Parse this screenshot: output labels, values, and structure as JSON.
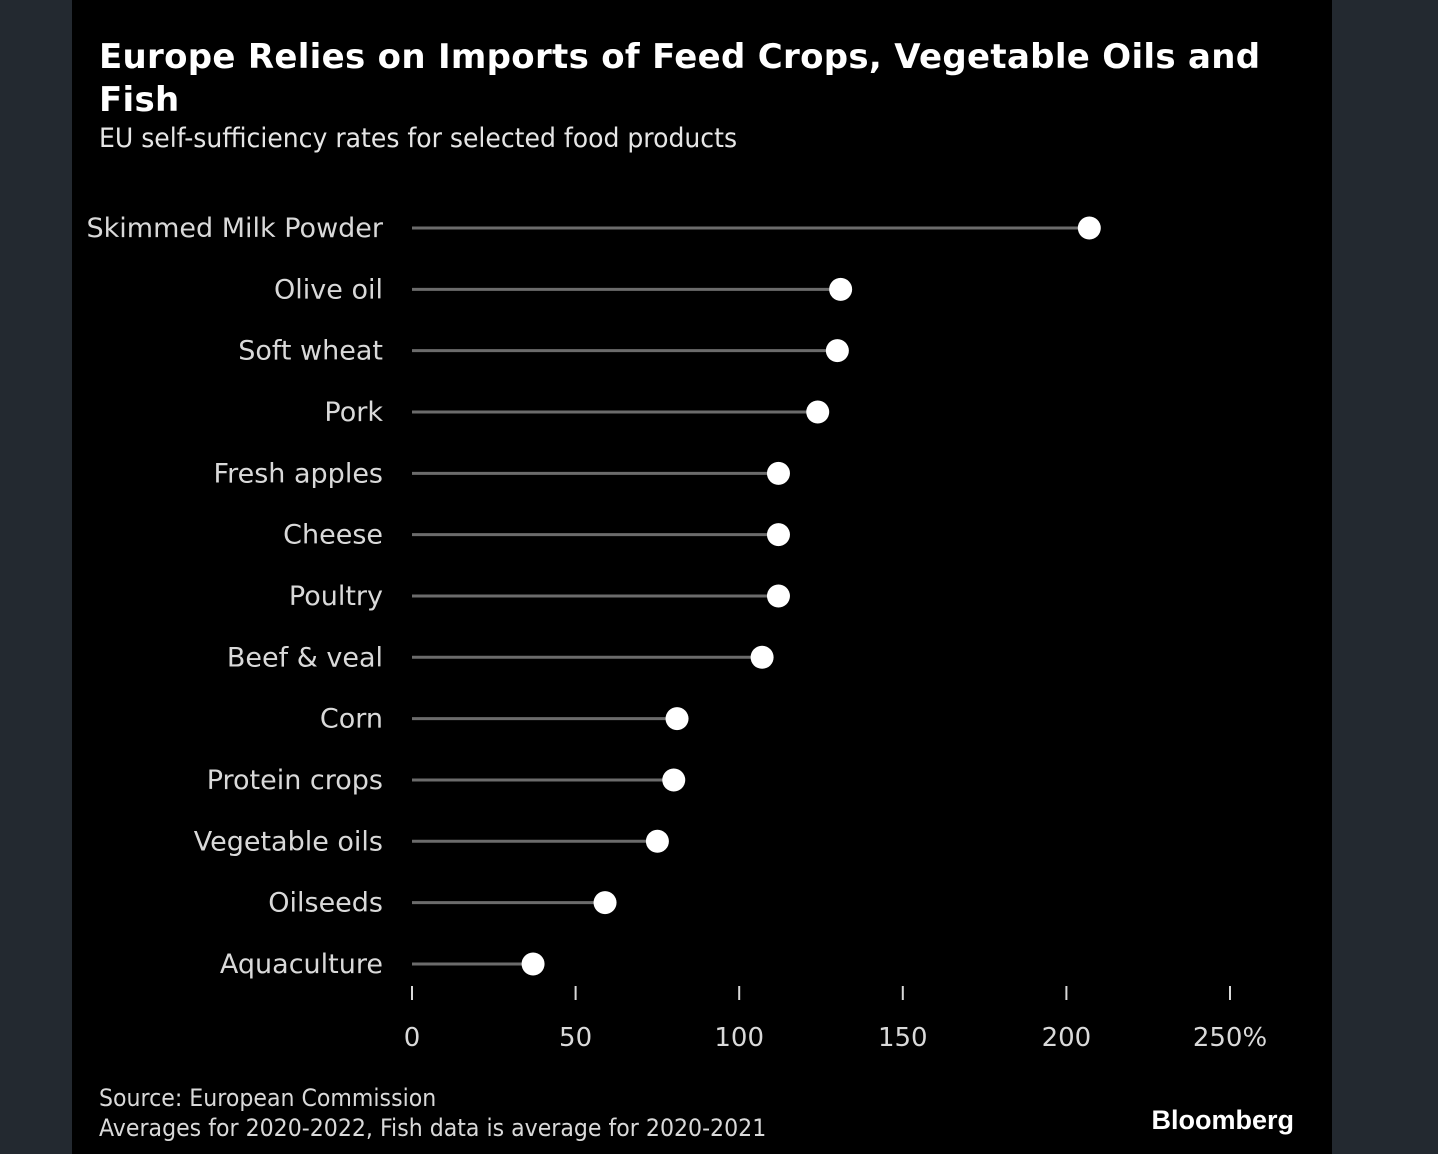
{
  "chart_data": {
    "type": "lollipop",
    "title": "Europe Relies on Imports of Feed Crops, Vegetable Oils and Fish",
    "subtitle": "EU self-sufficiency rates for selected food products",
    "xlabel": "",
    "ylabel": "",
    "unit": "%",
    "xlim": [
      0,
      250
    ],
    "x_ticks": [
      0,
      50,
      100,
      150,
      200,
      250
    ],
    "x_tick_labels": [
      "0",
      "50",
      "100",
      "150",
      "200",
      "250%"
    ],
    "grid": false,
    "legend": "none",
    "categories": [
      "Skimmed Milk Powder",
      "Olive oil",
      "Soft wheat",
      "Pork",
      "Fresh apples",
      "Cheese",
      "Poultry",
      "Beef & veal",
      "Corn",
      "Protein crops",
      "Vegetable oils",
      "Oilseeds",
      "Aquaculture"
    ],
    "values": [
      207,
      131,
      130,
      124,
      112,
      112,
      112,
      107,
      81,
      80,
      75,
      59,
      37
    ],
    "colors": {
      "stem": "#6b6b6b",
      "dot": "#ffffff",
      "text": "#d9d9d9",
      "background": "#000000"
    }
  },
  "footer": {
    "source": "Source: European Commission",
    "note": "Averages for 2020-2022, Fish data is average for 2020-2021",
    "brand": "Bloomberg"
  }
}
